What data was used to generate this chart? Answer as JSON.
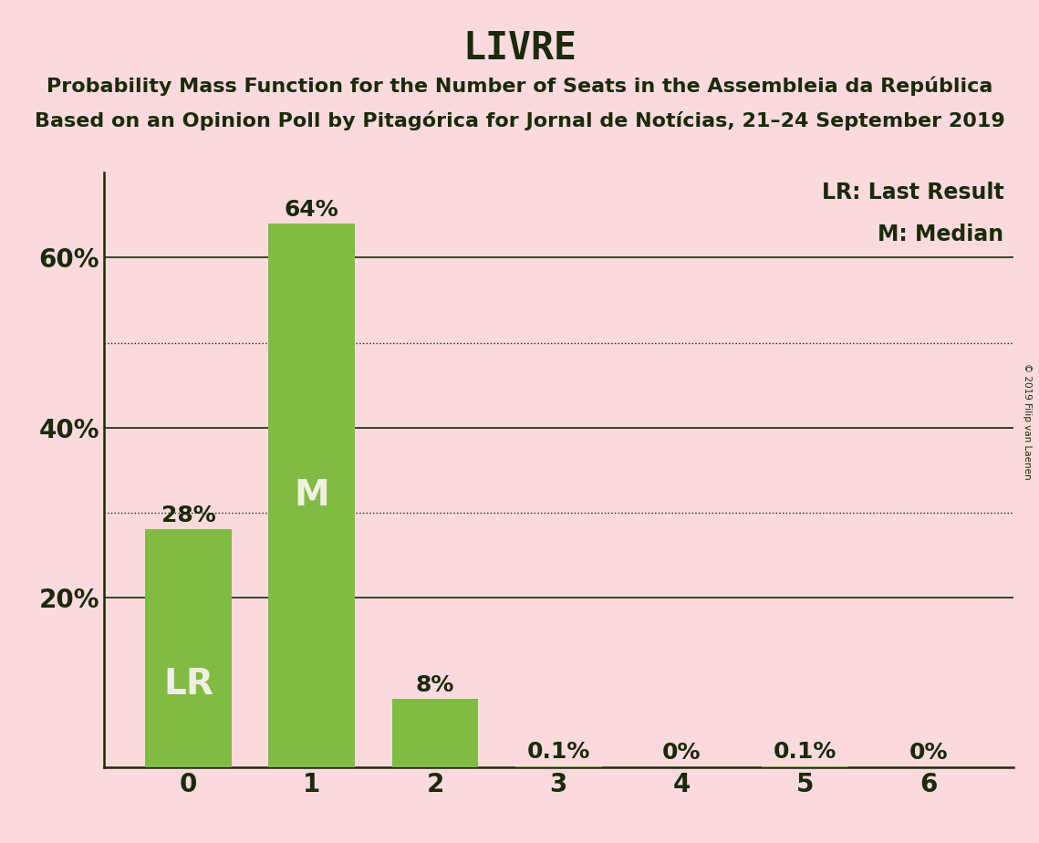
{
  "title": "LIVRE",
  "subtitle1": "Probability Mass Function for the Number of Seats in the Assembleia da República",
  "subtitle2": "Based on an Opinion Poll by Pitagórica for Jornal de Notícias, 21–24 September 2019",
  "copyright": "© 2019 Filip van Laenen",
  "categories": [
    0,
    1,
    2,
    3,
    4,
    5,
    6
  ],
  "values": [
    0.28,
    0.64,
    0.08,
    0.001,
    0.0,
    0.001,
    0.0
  ],
  "bar_labels": [
    "28%",
    "64%",
    "8%",
    "0.1%",
    "0%",
    "0.1%",
    "0%"
  ],
  "bar_color": "#80bb44",
  "background_color": "#fadadd",
  "text_color": "#1a2a0a",
  "bar_label_color_inside": "#f0f0e0",
  "lr_bar_index": 0,
  "median_bar_index": 1,
  "lr_label": "LR",
  "median_label": "M",
  "legend_lr": "LR: Last Result",
  "legend_m": "M: Median",
  "yticks": [
    0.2,
    0.4,
    0.6
  ],
  "ytick_labels": [
    "20%",
    "40%",
    "60%"
  ],
  "grid_solid": [
    0.2,
    0.4,
    0.6
  ],
  "grid_dotted": [
    0.3,
    0.5
  ],
  "ylim": [
    0,
    0.7
  ],
  "title_fontsize": 30,
  "subtitle_fontsize": 16,
  "axis_label_fontsize": 20,
  "bar_label_fontsize": 18,
  "inside_label_fontsize": 28,
  "legend_fontsize": 17
}
